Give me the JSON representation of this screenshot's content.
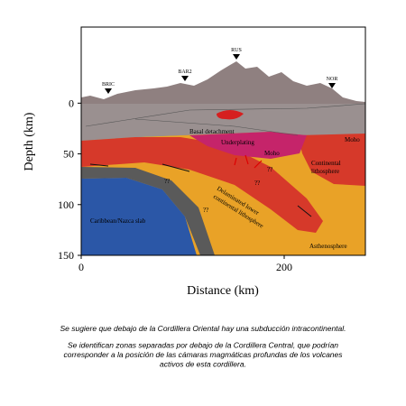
{
  "figure": {
    "y_axis": {
      "label": "Depth (km)",
      "lim": [
        -75,
        150
      ],
      "ticks": [
        0,
        50,
        100,
        150
      ]
    },
    "x_axis": {
      "label": "Distance (km)",
      "lim": [
        0,
        280
      ],
      "ticks": [
        0,
        200
      ]
    },
    "stations": [
      "BRIC",
      "BAR2",
      "RUS",
      "NOR"
    ],
    "labels": {
      "basal": "Basal detachment",
      "underplating": "Underplating",
      "moho_right": "Moho",
      "moho_center": "Moho",
      "continental": [
        "Continental",
        "lithosphere"
      ],
      "delaminated": [
        "Delaminated lower",
        "continental lithosphere"
      ],
      "slab": "Caribbean/Nazca slab",
      "asthenosphere": "Asthenosphere",
      "unknowns": [
        "??",
        "??",
        "??",
        "??"
      ]
    },
    "caption": [
      [
        "Se sugiere que debajo de la Cordillera Oriental hay una subducción intracontinental."
      ],
      [
        "Se identifican zonas separadas por debajo de la Cordillera Central, que podrían",
        "corresponder a la posición de las cámaras magmáticas profundas de los volcanes",
        "activos de esta cordillera."
      ]
    ]
  }
}
